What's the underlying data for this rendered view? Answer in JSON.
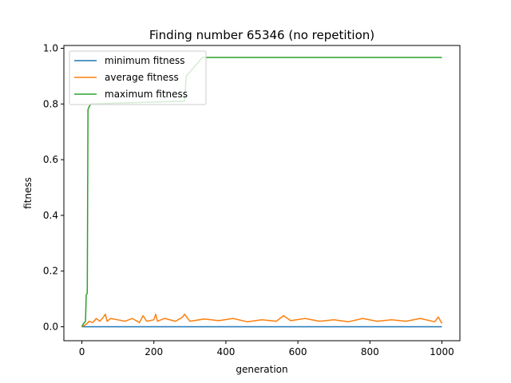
{
  "chart_data": {
    "type": "line",
    "title": "Finding number 65346 (no repetition)",
    "xlabel": "generation",
    "ylabel": "fitness",
    "xlim": [
      -50,
      1050
    ],
    "ylim": [
      -0.05,
      1.01
    ],
    "xticks": [
      0,
      200,
      400,
      600,
      800,
      1000
    ],
    "yticks": [
      0.0,
      0.2,
      0.4,
      0.6,
      0.8,
      1.0
    ],
    "xtick_labels": [
      "0",
      "200",
      "400",
      "600",
      "800",
      "1000"
    ],
    "ytick_labels": [
      "0.0",
      "0.2",
      "0.4",
      "0.6",
      "0.8",
      "1.0"
    ],
    "grid": false,
    "legend_position": "upper-left",
    "series": [
      {
        "name": "minimum fitness",
        "color": "#1f77b4",
        "x": [
          0,
          1000
        ],
        "y": [
          0.0,
          0.0
        ]
      },
      {
        "name": "average fitness",
        "color": "#ff7f0e",
        "x": [
          0,
          5,
          10,
          15,
          20,
          30,
          40,
          50,
          60,
          65,
          70,
          80,
          100,
          120,
          140,
          160,
          170,
          180,
          200,
          205,
          210,
          230,
          260,
          280,
          285,
          300,
          340,
          380,
          420,
          460,
          500,
          540,
          560,
          580,
          620,
          660,
          700,
          740,
          780,
          820,
          860,
          900,
          940,
          980,
          990,
          1000
        ],
        "y": [
          0.0,
          0.003,
          0.008,
          0.012,
          0.02,
          0.015,
          0.03,
          0.02,
          0.035,
          0.045,
          0.02,
          0.03,
          0.025,
          0.02,
          0.03,
          0.015,
          0.04,
          0.02,
          0.025,
          0.045,
          0.02,
          0.03,
          0.02,
          0.035,
          0.045,
          0.02,
          0.028,
          0.022,
          0.03,
          0.018,
          0.025,
          0.02,
          0.04,
          0.022,
          0.03,
          0.02,
          0.025,
          0.018,
          0.03,
          0.02,
          0.025,
          0.02,
          0.03,
          0.018,
          0.035,
          0.012
        ]
      },
      {
        "name": "maximum fitness",
        "color": "#2ca02c",
        "x": [
          0,
          5,
          10,
          12,
          15,
          17,
          20,
          25,
          285,
          290,
          335,
          1000
        ],
        "y": [
          0.0,
          0.012,
          0.02,
          0.115,
          0.12,
          0.78,
          0.79,
          0.8,
          0.81,
          0.9,
          0.967,
          0.967
        ]
      }
    ]
  }
}
